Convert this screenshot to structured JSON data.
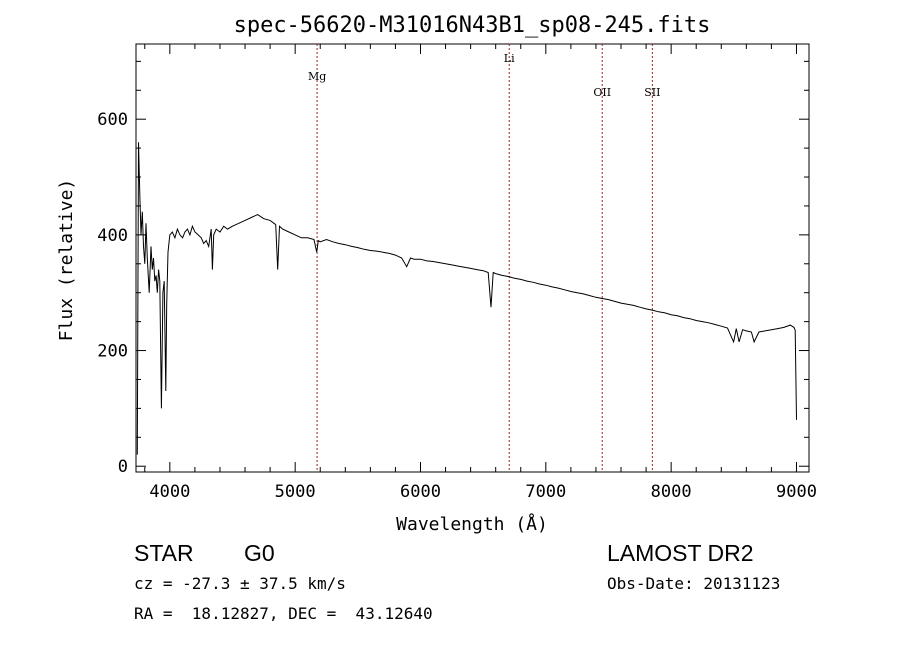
{
  "chart_data": {
    "type": "line",
    "title": "spec-56620-M31016N43B1_sp08-245.fits",
    "xlabel": "Wavelength (Å)",
    "ylabel": "Flux (relative)",
    "xlim": [
      3730,
      9100
    ],
    "ylim": [
      -10,
      730
    ],
    "x_ticks": [
      4000,
      5000,
      6000,
      7000,
      8000,
      9000
    ],
    "y_ticks": [
      0,
      200,
      400,
      600
    ],
    "grid": false,
    "line_color": "#000000",
    "marker_color": "#a02020",
    "spectral_lines": [
      {
        "label": "Mg",
        "wavelength": 5175
      },
      {
        "label": "Li",
        "wavelength": 6708
      },
      {
        "label": "OII",
        "wavelength": 7450
      },
      {
        "label": "SII",
        "wavelength": 7850
      }
    ],
    "series": [
      {
        "x": [
          3740,
          3750,
          3760,
          3770,
          3780,
          3790,
          3800,
          3810,
          3820,
          3835,
          3850,
          3860,
          3870,
          3880,
          3890,
          3900,
          3910,
          3920,
          3933,
          3945,
          3955,
          3968,
          3975,
          3985,
          4000,
          4020,
          4040,
          4060,
          4080,
          4102,
          4120,
          4140,
          4160,
          4180,
          4200,
          4226,
          4250,
          4270,
          4290,
          4310,
          4330,
          4340,
          4350,
          4370,
          4400,
          4430,
          4460,
          4500,
          4550,
          4600,
          4650,
          4700,
          4750,
          4800,
          4830,
          4845,
          4861,
          4875,
          4900,
          4950,
          5000,
          5050,
          5100,
          5150,
          5172,
          5185,
          5200,
          5250,
          5300,
          5350,
          5400,
          5450,
          5500,
          5550,
          5600,
          5650,
          5700,
          5750,
          5800,
          5850,
          5890,
          5920,
          5950,
          6000,
          6050,
          6100,
          6150,
          6200,
          6250,
          6300,
          6350,
          6400,
          6450,
          6500,
          6540,
          6563,
          6580,
          6600,
          6650,
          6700,
          6750,
          6800,
          6850,
          6900,
          6950,
          7000,
          7050,
          7100,
          7150,
          7200,
          7250,
          7300,
          7350,
          7400,
          7450,
          7500,
          7550,
          7600,
          7650,
          7700,
          7750,
          7800,
          7850,
          7900,
          7950,
          8000,
          8050,
          8100,
          8150,
          8200,
          8250,
          8300,
          8350,
          8400,
          8450,
          8498,
          8520,
          8542,
          8570,
          8600,
          8640,
          8662,
          8700,
          8750,
          8800,
          8850,
          8900,
          8950,
          8980,
          8990,
          9000
        ],
        "y": [
          20,
          560,
          470,
          400,
          440,
          380,
          350,
          420,
          360,
          300,
          380,
          340,
          360,
          320,
          330,
          300,
          340,
          320,
          100,
          300,
          320,
          130,
          280,
          370,
          400,
          405,
          395,
          410,
          400,
          395,
          405,
          410,
          400,
          415,
          405,
          400,
          395,
          385,
          390,
          380,
          410,
          340,
          400,
          410,
          405,
          415,
          410,
          415,
          420,
          425,
          430,
          435,
          428,
          425,
          420,
          418,
          340,
          415,
          410,
          405,
          400,
          395,
          395,
          392,
          370,
          390,
          388,
          392,
          388,
          385,
          383,
          380,
          378,
          375,
          373,
          372,
          370,
          368,
          365,
          360,
          345,
          360,
          358,
          358,
          355,
          354,
          352,
          350,
          348,
          346,
          344,
          342,
          340,
          338,
          335,
          275,
          335,
          333,
          330,
          328,
          325,
          323,
          320,
          318,
          315,
          313,
          310,
          308,
          305,
          302,
          300,
          298,
          295,
          292,
          290,
          288,
          285,
          282,
          280,
          278,
          275,
          272,
          270,
          267,
          265,
          262,
          260,
          257,
          255,
          252,
          250,
          248,
          245,
          242,
          239,
          215,
          238,
          215,
          236,
          234,
          232,
          215,
          232,
          234,
          236,
          238,
          240,
          244,
          240,
          235,
          80
        ]
      }
    ]
  },
  "info": {
    "object_class": "STAR",
    "subclass": "G0",
    "survey": "LAMOST DR2",
    "cz": "cz = -27.3 ± 37.5 km/s",
    "obs_date": "Obs-Date: 20131123",
    "radec": "RA =  18.12827, DEC =  43.12640"
  }
}
